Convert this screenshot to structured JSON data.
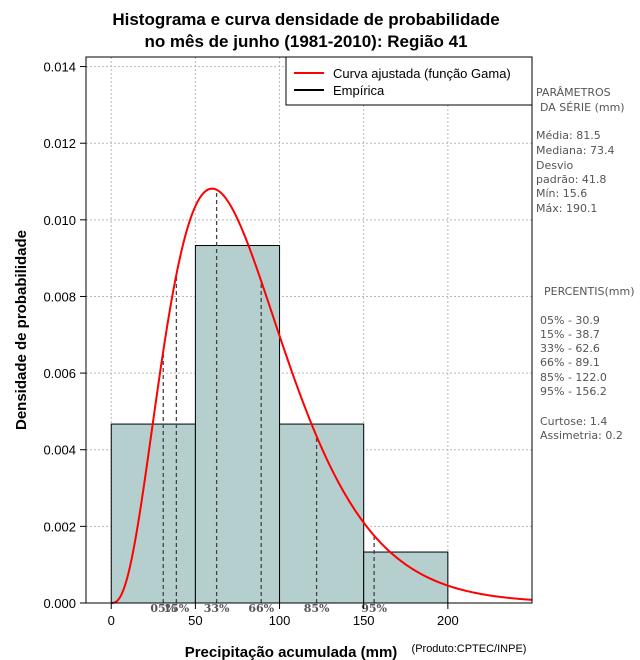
{
  "chart_data": {
    "type": "bar",
    "title_line1": "Histograma e curva densidade de probabilidade",
    "title_line2": "no mês de junho (1981-2010): Região 41",
    "xlabel": "Precipitação acumulada (mm)",
    "credit": "(Produto:CPTEC/INPE)",
    "ylabel": "Densidade de probabilidade",
    "xlim": [
      -15,
      250
    ],
    "ylim": [
      0,
      0.01425
    ],
    "x_ticks": [
      "0",
      "50",
      "100",
      "150",
      "200"
    ],
    "y_ticks": [
      "0.000",
      "0.002",
      "0.004",
      "0.006",
      "0.008",
      "0.010",
      "0.012",
      "0.014"
    ],
    "grid": true,
    "bins": [
      {
        "start": 0,
        "end": 50,
        "density": 0.00467
      },
      {
        "start": 50,
        "end": 100,
        "density": 0.00933
      },
      {
        "start": 100,
        "end": 150,
        "density": 0.00467
      },
      {
        "start": 150,
        "end": 200,
        "density": 0.00133
      }
    ],
    "gamma_fit": {
      "shape": 3.8,
      "scale": 21.4
    },
    "percentiles": [
      {
        "label": "05%",
        "value": 30.9
      },
      {
        "label": "15%",
        "value": 38.7
      },
      {
        "label": "33%",
        "value": 62.6
      },
      {
        "label": "66%",
        "value": 89.1
      },
      {
        "label": "85%",
        "value": 122.0
      },
      {
        "label": "95%",
        "value": 156.2
      }
    ],
    "legend": {
      "placement": "top-right",
      "entries": [
        {
          "name": "Curva ajustada (função Gama)",
          "color": "#ff0000"
        },
        {
          "name": "Empírica",
          "color": "#000000"
        }
      ]
    },
    "colors": {
      "bar_fill": "#b5cfcf",
      "curve": "#ff0000"
    }
  },
  "stats_panel": {
    "title_line1": "PARÂMETROS",
    "title_line2": "DA SÉRIE (mm)",
    "lines": [
      "Média:  81.5",
      "Mediana:  73.4",
      "Desvio",
      "padrão:  41.8",
      "Mín:  15.6",
      "Máx:  190.1"
    ]
  },
  "percentis_panel": {
    "title": "PERCENTIS(mm)",
    "lines": [
      "05% -   30.9",
      "15% -   38.7",
      "33% -   62.6",
      "66% -   89.1",
      "85% -   122.0",
      "95% -   156.2"
    ],
    "extra": [
      "Curtose:  1.4",
      "Assimetria:  0.2"
    ]
  }
}
